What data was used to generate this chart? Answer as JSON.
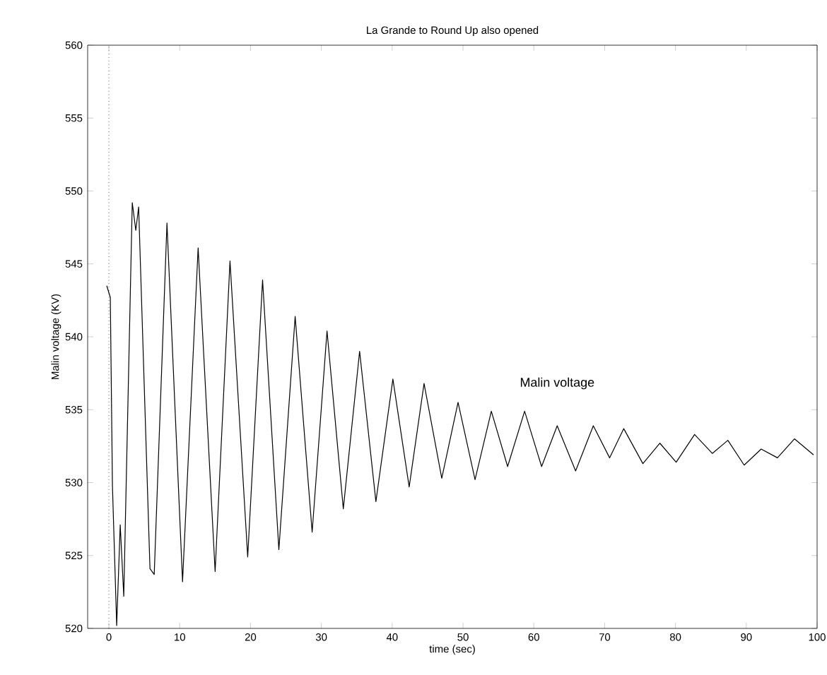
{
  "chart_data": {
    "type": "line",
    "title": "La Grande to Round Up also opened",
    "xlabel": "time (sec)",
    "ylabel": "Malin voltage (KV)",
    "xlim": [
      -3,
      100
    ],
    "ylim": [
      520,
      560
    ],
    "xticks": [
      0,
      10,
      20,
      30,
      40,
      50,
      60,
      70,
      80,
      90,
      100
    ],
    "yticks": [
      520,
      525,
      530,
      535,
      540,
      545,
      550,
      555,
      560
    ],
    "grid": false,
    "legend": false,
    "line_style": "solid",
    "marker": "none",
    "ref_lines": [
      {
        "axis": "x",
        "value": 0,
        "line_style": "dotted",
        "color": "#000000"
      }
    ],
    "series": [
      {
        "name": "Malin voltage",
        "color": "#000000",
        "x": [
          -0.3,
          0.2,
          0.5,
          1.1,
          1.6,
          2.1,
          3.3,
          3.8,
          4.2,
          5.8,
          6.4,
          8.2,
          10.4,
          12.6,
          15.0,
          17.1,
          19.6,
          21.7,
          24.0,
          26.3,
          28.7,
          30.8,
          33.1,
          35.4,
          37.7,
          40.1,
          42.4,
          44.5,
          47.0,
          49.3,
          51.7,
          54.0,
          56.3,
          58.7,
          61.1,
          63.3,
          65.9,
          68.4,
          70.7,
          72.7,
          75.4,
          77.8,
          80.1,
          82.7,
          85.2,
          87.4,
          89.7,
          92.1,
          94.4,
          96.8,
          99.5
        ],
        "values": [
          543.5,
          542.7,
          529.8,
          520.2,
          527.1,
          522.2,
          549.2,
          547.3,
          548.9,
          524.1,
          523.7,
          547.8,
          523.2,
          546.1,
          523.9,
          545.2,
          524.9,
          543.9,
          525.4,
          541.4,
          526.6,
          540.4,
          528.2,
          539.0,
          528.7,
          537.1,
          529.7,
          536.8,
          530.3,
          535.5,
          530.2,
          534.9,
          531.1,
          534.9,
          531.1,
          533.9,
          530.8,
          533.9,
          531.7,
          533.7,
          531.3,
          532.7,
          531.4,
          533.3,
          532.0,
          532.9,
          531.2,
          532.3,
          531.7,
          533.0,
          531.9
        ]
      }
    ]
  }
}
